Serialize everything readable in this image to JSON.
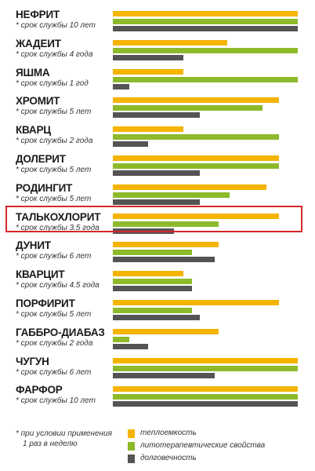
{
  "chart_data": {
    "type": "bar",
    "orientation": "horizontal",
    "xlim": [
      0,
      100
    ],
    "grid": false,
    "legend_position": "bottom-right",
    "series": [
      {
        "name": "теплоемкость",
        "color": "#f5b400"
      },
      {
        "name": "литотерапевтические свойства",
        "color": "#8dba2b"
      },
      {
        "name": "долговечность",
        "color": "#545454"
      }
    ],
    "categories": [
      {
        "name": "НЕФРИТ",
        "life": "* срок службы 10 лет",
        "values": [
          100,
          100,
          100
        ]
      },
      {
        "name": "ЖАДЕИТ",
        "life": "* срок службы 4 года",
        "values": [
          62,
          100,
          38
        ]
      },
      {
        "name": "ЯШМА",
        "life": "* срок службы 1 год",
        "values": [
          38,
          100,
          9
        ]
      },
      {
        "name": "ХРОМИТ",
        "life": "* срок службы  5 лет",
        "values": [
          90,
          81,
          47
        ]
      },
      {
        "name": "КВАРЦ",
        "life": "* срок службы  2 года",
        "values": [
          38,
          90,
          19
        ]
      },
      {
        "name": "ДОЛЕРИТ",
        "life": "* срок службы 5 лет",
        "values": [
          90,
          90,
          47
        ]
      },
      {
        "name": "РОДИНГИТ",
        "life": "* срок службы 5 лет",
        "values": [
          83,
          63,
          47
        ]
      },
      {
        "name": "ТАЛЬКОХЛОРИТ",
        "life": "* срок службы  3.5 года",
        "values": [
          90,
          57,
          33
        ]
      },
      {
        "name": "ДУНИТ",
        "life": "* срок службы 6 лет",
        "values": [
          57,
          43,
          55
        ]
      },
      {
        "name": "КВАРЦИТ",
        "life": "* срок службы 4.5 года",
        "values": [
          38,
          43,
          43
        ]
      },
      {
        "name": "ПОРФИРИТ",
        "life": "* срок службы  5 лет",
        "values": [
          90,
          43,
          47
        ]
      },
      {
        "name": "ГАББРО-ДИАБАЗ",
        "life": "* срок службы  2 года",
        "values": [
          57,
          9,
          19
        ]
      },
      {
        "name": "ЧУГУН",
        "life": "* срок службы  6 лет",
        "values": [
          100,
          100,
          55
        ]
      },
      {
        "name": "ФАРФОР",
        "life": "* срок службы 10 лет",
        "values": [
          100,
          100,
          100
        ]
      }
    ],
    "highlighted": "ТАЛЬКОХЛОРИТ"
  },
  "footnote": {
    "line1": "*  при условии применения",
    "line2": "1 раз в неделю"
  }
}
